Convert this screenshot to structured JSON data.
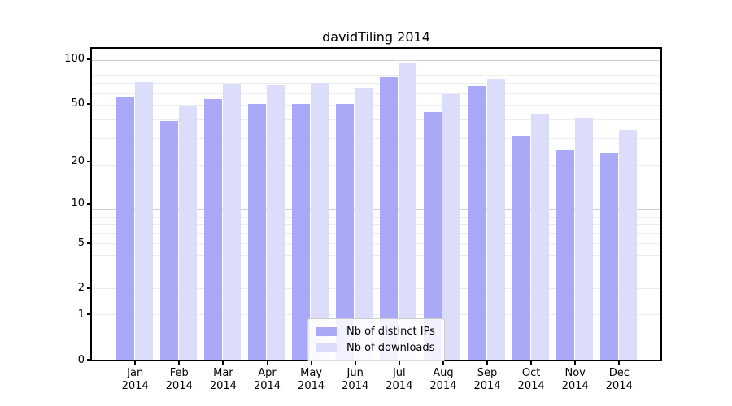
{
  "title": "davidTiling 2014",
  "colors": {
    "distinct_ips": "#a9a9f7",
    "downloads": "#dcdcfb",
    "gridline_minor": "#ededed",
    "gridline_major": "#cfcfcf",
    "axis": "#000000"
  },
  "legend": {
    "position": "lower center",
    "items": [
      {
        "label": "Nb of distinct IPs",
        "series": "distinct_ips"
      },
      {
        "label": "Nb of downloads",
        "series": "downloads"
      }
    ]
  },
  "y_axis": {
    "tick_labels": [
      "100",
      "50",
      "20",
      "10",
      "5",
      "2",
      "1",
      "0"
    ]
  },
  "x_axis": {
    "months": [
      "Jan",
      "Feb",
      "Mar",
      "Apr",
      "May",
      "Jun",
      "Jul",
      "Aug",
      "Sep",
      "Oct",
      "Nov",
      "Dec"
    ],
    "year": "2014"
  },
  "chart_data": {
    "type": "bar",
    "title": "davidTiling 2014",
    "categories": [
      "Jan 2014",
      "Feb 2014",
      "Mar 2014",
      "Apr 2014",
      "May 2014",
      "Jun 2014",
      "Jul 2014",
      "Aug 2014",
      "Sep 2014",
      "Oct 2014",
      "Nov 2014",
      "Dec 2014"
    ],
    "series": [
      {
        "name": "Nb of distinct IPs",
        "color": "#a9a9f7",
        "values": [
          56,
          38,
          54,
          50,
          50,
          50,
          76,
          44,
          66,
          30,
          24,
          23
        ]
      },
      {
        "name": "Nb of downloads",
        "color": "#dcdcfb",
        "values": [
          70,
          48,
          68,
          67,
          69,
          64,
          94,
          58,
          74,
          43,
          40,
          33
        ]
      }
    ],
    "xlabel": "",
    "ylabel": "",
    "y_scale": "log10(1+v)",
    "y_ticks": [
      0,
      1,
      2,
      5,
      10,
      20,
      50,
      100
    ],
    "ylim": [
      0,
      119
    ],
    "grid": true,
    "legend_position": "lower center"
  }
}
